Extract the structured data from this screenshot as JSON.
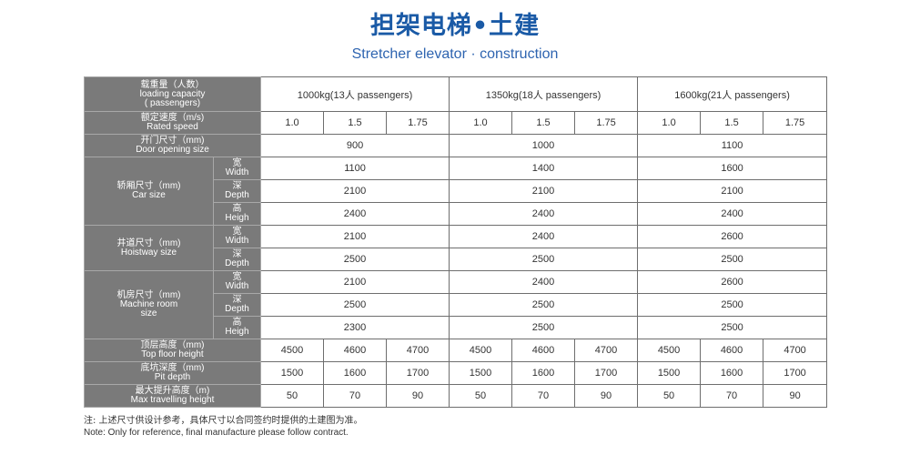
{
  "title": {
    "zh": "担架电梯•土建",
    "en": "Stretcher elevator · construction"
  },
  "labels": {
    "capacity_zh": "载重量（人数）",
    "capacity_en1": "loading capacity",
    "capacity_en2": "( passengers)",
    "speed_zh": "额定速度（m/s)",
    "speed_en": "Rated speed",
    "door_zh": "开门尺寸（mm)",
    "door_en": "Door opening size",
    "car_zh": "轿厢尺寸（mm)",
    "car_en": "Car size",
    "hoistway_zh": "井道尺寸（mm)",
    "hoistway_en": "Hoistway size",
    "machine_zh": "机房尺寸（mm)",
    "machine_en1": "Machine room",
    "machine_en2": "size",
    "topfloor_zh": "顶层高度（mm)",
    "topfloor_en": "Top floor height",
    "pit_zh": "底坑深度（mm)",
    "pit_en": "Pit depth",
    "travel_zh": "最大提升高度（m)",
    "travel_en": "Max travelling height",
    "width_zh": "宽",
    "width_en": "Width",
    "depth_zh": "深",
    "depth_en": "Depth",
    "height_zh": "高",
    "height_en": "Heigh"
  },
  "capacities": [
    "1000kg(13人 passengers)",
    "1350kg(18人 passengers)",
    "1600kg(21人 passengers)"
  ],
  "speeds": [
    "1.0",
    "1.5",
    "1.75",
    "1.0",
    "1.5",
    "1.75",
    "1.0",
    "1.5",
    "1.75"
  ],
  "door": [
    "900",
    "1000",
    "1100"
  ],
  "car_width": [
    "1100",
    "1400",
    "1600"
  ],
  "car_depth": [
    "2100",
    "2100",
    "2100"
  ],
  "car_height": [
    "2400",
    "2400",
    "2400"
  ],
  "hoistway_width": [
    "2100",
    "2400",
    "2600"
  ],
  "hoistway_depth": [
    "2500",
    "2500",
    "2500"
  ],
  "machine_width": [
    "2100",
    "2400",
    "2600"
  ],
  "machine_depth": [
    "2500",
    "2500",
    "2500"
  ],
  "machine_height": [
    "2300",
    "2500",
    "2500"
  ],
  "top_floor": [
    "4500",
    "4600",
    "4700",
    "4500",
    "4600",
    "4700",
    "4500",
    "4600",
    "4700"
  ],
  "pit": [
    "1500",
    "1600",
    "1700",
    "1500",
    "1600",
    "1700",
    "1500",
    "1600",
    "1700"
  ],
  "travel": [
    "50",
    "70",
    "90",
    "50",
    "70",
    "90",
    "50",
    "70",
    "90"
  ],
  "notes": {
    "zh": "注: 上述尺寸供设计参考，具体尺寸以合同签约时提供的土建图为准。",
    "en": "Note: Only for reference, final manufacture please follow contract."
  },
  "colors": {
    "title": "#1a5aa6",
    "header_bg": "#7a7a7a",
    "border": "#6e6e6e"
  }
}
